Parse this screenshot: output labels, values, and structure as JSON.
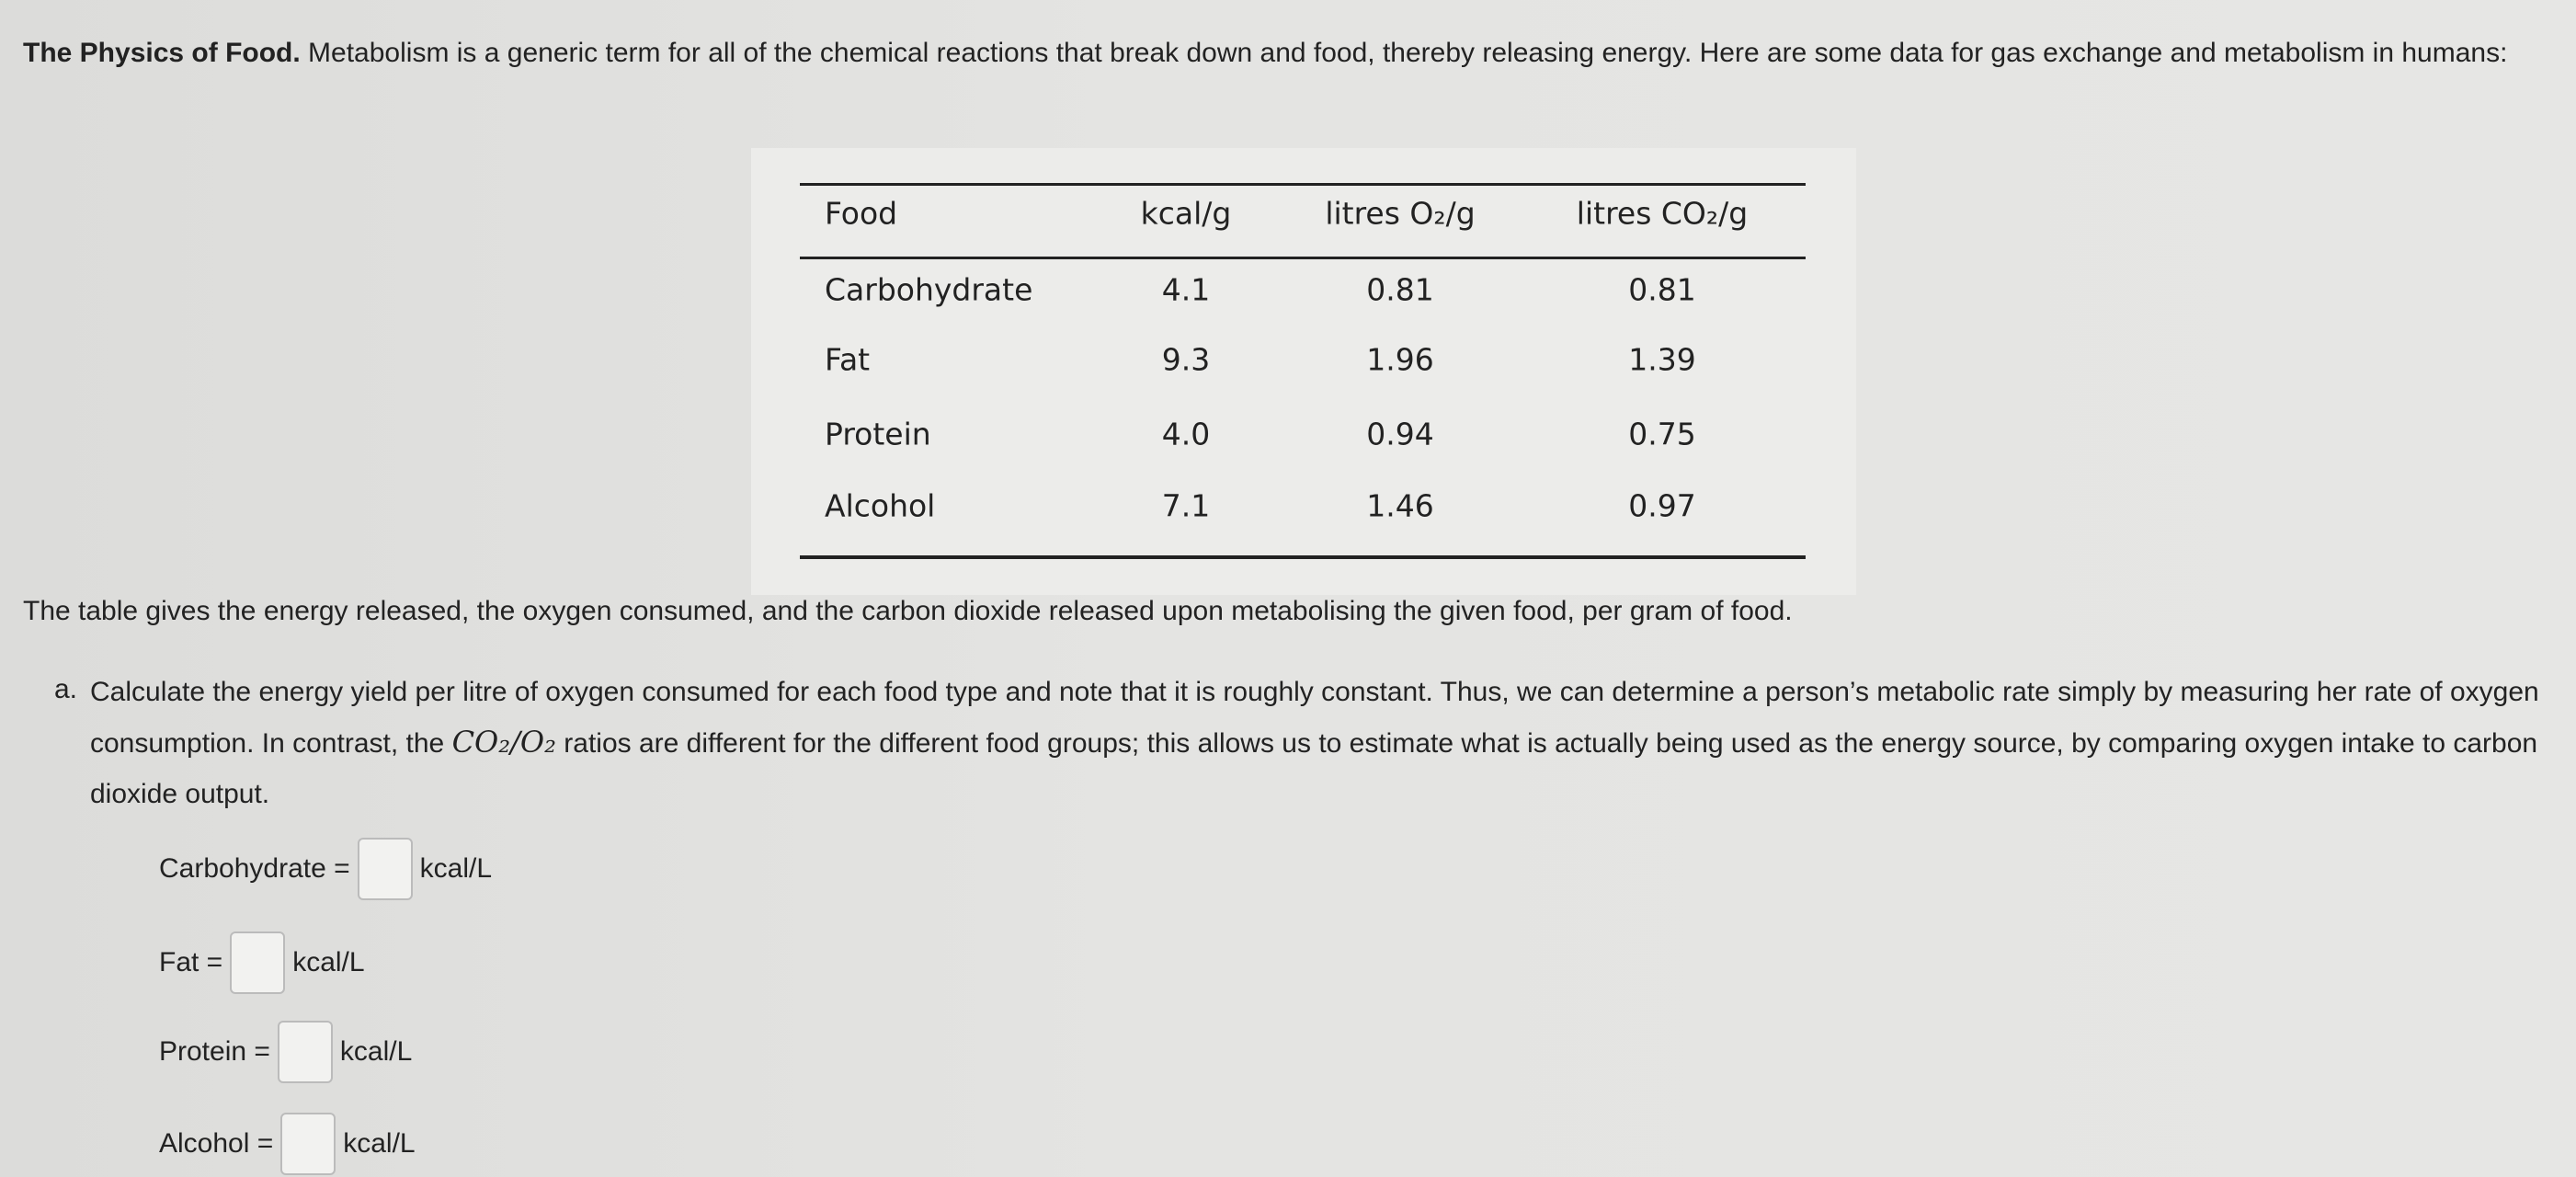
{
  "intro": {
    "title": "The Physics of Food.",
    "text": "Metabolism is a generic term for all of the chemical reactions that break down and food, thereby releasing energy. Here are some data for gas exchange and metabolism in humans:"
  },
  "table": {
    "header": [
      "Food",
      "kcal/g",
      "litres O₂/g",
      "litres CO₂/g"
    ],
    "rows": [
      [
        "Carbohydrate",
        "4.1",
        "0.81",
        "0.81"
      ],
      [
        "Fat",
        "9.3",
        "1.96",
        "1.39"
      ],
      [
        "Protein",
        "4.0",
        "0.94",
        "0.75"
      ],
      [
        "Alcohol",
        "7.1",
        "1.46",
        "0.97"
      ]
    ]
  },
  "description": "The table gives the energy released, the oxygen consumed, and the carbon dioxide released upon metabolising the given food, per gram of food.",
  "question": {
    "label": "a.",
    "text_before": "Calculate the energy yield per litre of oxygen consumed for each food type and note that it is roughly constant. Thus, we can determine a person’s metabolic rate simply by measuring her rate of oxygen consumption. In contrast, the",
    "math": "CO₂/O₂",
    "text_after": "ratios are different for the different food groups; this allows us to estimate what is actually being used as the energy source, by comparing oxygen intake to carbon dioxide output."
  },
  "answers": [
    {
      "label": "Carbohydrate =",
      "unit": "kcal/L"
    },
    {
      "label": "Fat =",
      "unit": "kcal/L"
    },
    {
      "label": "Protein =",
      "unit": "kcal/L"
    },
    {
      "label": "Alcohol =",
      "unit": "kcal/L"
    }
  ]
}
